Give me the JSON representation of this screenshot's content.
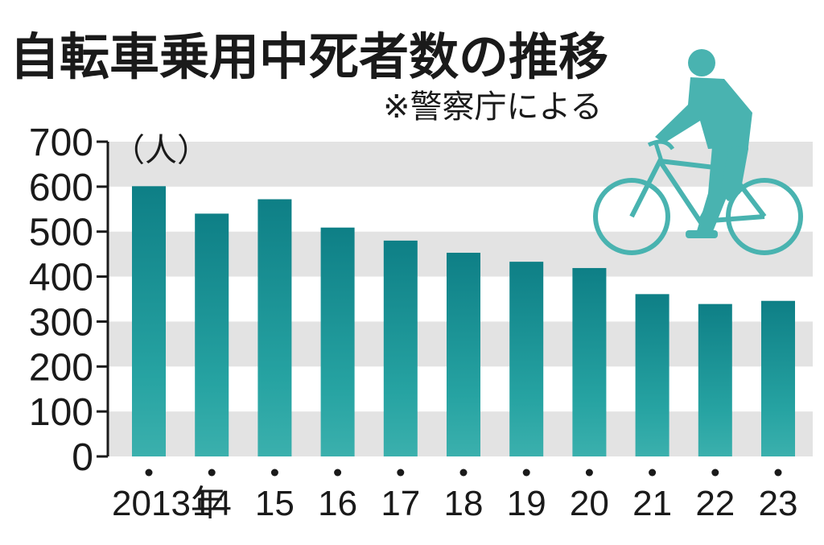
{
  "colors": {
    "bar_top": "#0e7f86",
    "bar_bottom": "#3bb0ad",
    "band": "#e3e3e3",
    "text": "#1a1a1a",
    "cyclist": "#49b3b0"
  },
  "cyclist": {
    "icon": "cyclist-icon"
  },
  "chart_data": {
    "type": "bar",
    "title": "自転車乗用中死者数の推移",
    "subtitle": "※警察庁による",
    "ylabel": "（人）",
    "xlabel": "",
    "ylim": [
      0,
      700
    ],
    "yticks": [
      "0",
      "100",
      "200",
      "300",
      "400",
      "500",
      "600",
      "700"
    ],
    "grid": true,
    "categories": [
      "2013年",
      "14",
      "15",
      "16",
      "17",
      "18",
      "19",
      "20",
      "21",
      "22",
      "23"
    ],
    "values": [
      601,
      540,
      572,
      509,
      480,
      453,
      433,
      419,
      361,
      339,
      346
    ]
  }
}
